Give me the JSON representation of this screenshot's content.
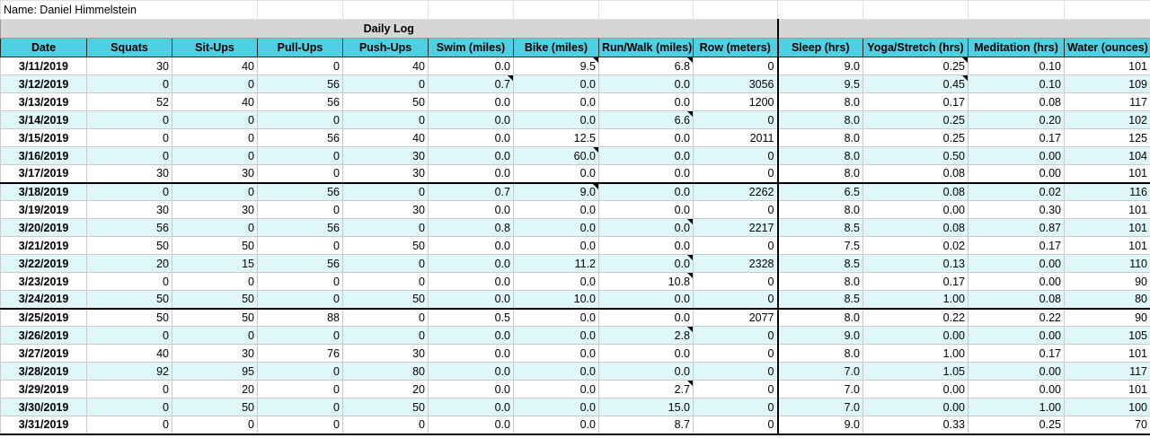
{
  "owner_label": "Name: Daniel Himmelstein",
  "section_title": "Daily Log",
  "columns": [
    "Date",
    "Squats",
    "Sit-Ups",
    "Pull-Ups",
    "Push-Ups",
    "Swim (miles)",
    "Bike (miles)",
    "Run/Walk (miles)",
    "Row (meters)",
    "Sleep (hrs)",
    "Yoga/Stretch (hrs)",
    "Meditation (hrs)",
    "Water (ounces)"
  ],
  "rows": [
    [
      "3/11/2019",
      "30",
      "40",
      "0",
      "40",
      "0.0",
      "9.5",
      "6.8",
      "0",
      "9.0",
      "0.25",
      "0.10",
      "101"
    ],
    [
      "3/12/2019",
      "0",
      "0",
      "56",
      "0",
      "0.7",
      "0.0",
      "0.0",
      "3056",
      "9.5",
      "0.45",
      "0.10",
      "109"
    ],
    [
      "3/13/2019",
      "52",
      "40",
      "56",
      "50",
      "0.0",
      "0.0",
      "0.0",
      "1200",
      "8.0",
      "0.17",
      "0.08",
      "117"
    ],
    [
      "3/14/2019",
      "0",
      "0",
      "0",
      "0",
      "0.0",
      "0.0",
      "6.6",
      "0",
      "8.0",
      "0.25",
      "0.20",
      "102"
    ],
    [
      "3/15/2019",
      "0",
      "0",
      "56",
      "40",
      "0.0",
      "12.5",
      "0.0",
      "2011",
      "8.0",
      "0.25",
      "0.17",
      "125"
    ],
    [
      "3/16/2019",
      "0",
      "0",
      "0",
      "30",
      "0.0",
      "60.0",
      "0.0",
      "0",
      "8.0",
      "0.50",
      "0.00",
      "104"
    ],
    [
      "3/17/2019",
      "30",
      "30",
      "0",
      "30",
      "0.0",
      "0.0",
      "0.0",
      "0",
      "8.0",
      "0.08",
      "0.00",
      "101"
    ],
    [
      "3/18/2019",
      "0",
      "0",
      "56",
      "0",
      "0.7",
      "9.0",
      "0.0",
      "2262",
      "6.5",
      "0.08",
      "0.02",
      "116"
    ],
    [
      "3/19/2019",
      "30",
      "30",
      "0",
      "30",
      "0.0",
      "0.0",
      "0.0",
      "0",
      "8.0",
      "0.00",
      "0.30",
      "101"
    ],
    [
      "3/20/2019",
      "56",
      "0",
      "56",
      "0",
      "0.8",
      "0.0",
      "0.0",
      "2217",
      "8.5",
      "0.08",
      "0.87",
      "101"
    ],
    [
      "3/21/2019",
      "50",
      "50",
      "0",
      "50",
      "0.0",
      "0.0",
      "0.0",
      "0",
      "7.5",
      "0.02",
      "0.17",
      "101"
    ],
    [
      "3/22/2019",
      "20",
      "15",
      "56",
      "0",
      "0.0",
      "11.2",
      "0.0",
      "2328",
      "8.5",
      "0.13",
      "0.00",
      "110"
    ],
    [
      "3/23/2019",
      "0",
      "0",
      "0",
      "0",
      "0.0",
      "0.0",
      "10.8",
      "0",
      "8.0",
      "0.17",
      "0.00",
      "90"
    ],
    [
      "3/24/2019",
      "50",
      "50",
      "0",
      "50",
      "0.0",
      "10.0",
      "0.0",
      "0",
      "8.5",
      "1.00",
      "0.08",
      "80"
    ],
    [
      "3/25/2019",
      "50",
      "50",
      "88",
      "0",
      "0.5",
      "0.0",
      "0.0",
      "2077",
      "8.0",
      "0.22",
      "0.22",
      "90"
    ],
    [
      "3/26/2019",
      "0",
      "0",
      "0",
      "0",
      "0.0",
      "0.0",
      "2.8",
      "0",
      "9.0",
      "0.00",
      "0.00",
      "105"
    ],
    [
      "3/27/2019",
      "40",
      "30",
      "76",
      "30",
      "0.0",
      "0.0",
      "0.0",
      "0",
      "8.0",
      "1.00",
      "0.17",
      "101"
    ],
    [
      "3/28/2019",
      "92",
      "95",
      "0",
      "80",
      "0.0",
      "0.0",
      "0.0",
      "0",
      "7.0",
      "1.05",
      "0.00",
      "117"
    ],
    [
      "3/29/2019",
      "0",
      "20",
      "0",
      "20",
      "0.0",
      "0.0",
      "2.7",
      "0",
      "7.0",
      "0.00",
      "0.00",
      "101"
    ],
    [
      "3/30/2019",
      "0",
      "50",
      "0",
      "50",
      "0.0",
      "0.0",
      "15.0",
      "0",
      "7.0",
      "0.00",
      "1.00",
      "100"
    ],
    [
      "3/31/2019",
      "0",
      "0",
      "0",
      "0",
      "0.0",
      "0.0",
      "8.7",
      "0",
      "9.0",
      "0.33",
      "0.25",
      "70"
    ]
  ],
  "notes": [
    {
      "row": 0,
      "col": 6
    },
    {
      "row": 0,
      "col": 7
    },
    {
      "row": 0,
      "col": 10
    },
    {
      "row": 1,
      "col": 5
    },
    {
      "row": 1,
      "col": 10
    },
    {
      "row": 3,
      "col": 7
    },
    {
      "row": 5,
      "col": 6
    },
    {
      "row": 7,
      "col": 6
    },
    {
      "row": 9,
      "col": 7
    },
    {
      "row": 11,
      "col": 7
    },
    {
      "row": 12,
      "col": 7
    },
    {
      "row": 15,
      "col": 7
    },
    {
      "row": 18,
      "col": 7
    }
  ],
  "colors": {
    "header_fill": "#4dd0e1",
    "alt_row_fill": "#e0f7fa",
    "title_fill": "#d6d6d6",
    "text": "#000000"
  }
}
